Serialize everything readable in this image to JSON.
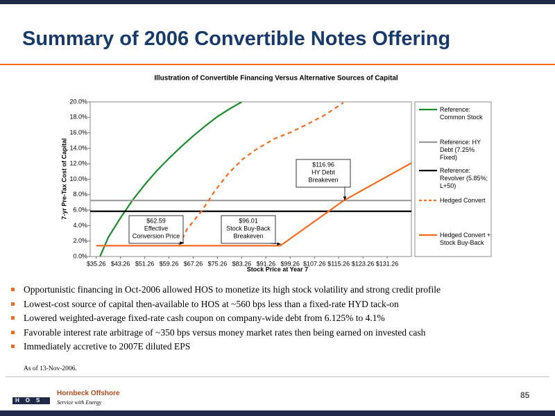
{
  "header": {
    "title": "Summary of 2006 Convertible Notes Offering"
  },
  "chart_data": {
    "type": "line",
    "title": "Illustration of Convertible Financing Versus Alternative Sources of Capital",
    "x_label": "Stock Price at Year 7",
    "y_label": "7-yr  Pre-Tax Cost of Capital",
    "xlim": [
      33.26,
      139.26
    ],
    "xticks": [
      {
        "value": 35.26,
        "label": "$35.26"
      },
      {
        "value": 43.26,
        "label": "$43.26"
      },
      {
        "value": 51.26,
        "label": "$51.26"
      },
      {
        "value": 59.26,
        "label": "$59.26"
      },
      {
        "value": 67.26,
        "label": "$67.26"
      },
      {
        "value": 75.26,
        "label": "$75.26"
      },
      {
        "value": 83.26,
        "label": "$83.26"
      },
      {
        "value": 91.26,
        "label": "$91.26"
      },
      {
        "value": 99.26,
        "label": "$99.26"
      },
      {
        "value": 107.26,
        "label": "$107.26"
      },
      {
        "value": 115.26,
        "label": "$115.26"
      },
      {
        "value": 123.26,
        "label": "$123.26"
      },
      {
        "value": 131.26,
        "label": "$131.26"
      }
    ],
    "ylim": [
      0,
      20
    ],
    "yticks": [
      {
        "value": 0,
        "label": "0.0%"
      },
      {
        "value": 2,
        "label": "2.0%"
      },
      {
        "value": 4,
        "label": "4.0%"
      },
      {
        "value": 6,
        "label": "6.0%"
      },
      {
        "value": 8,
        "label": "8.0%"
      },
      {
        "value": 10,
        "label": "10.0%"
      },
      {
        "value": 12,
        "label": "12.0%"
      },
      {
        "value": 14,
        "label": "14.0%"
      },
      {
        "value": 16,
        "label": "16.0%"
      },
      {
        "value": 18,
        "label": "18.0%"
      },
      {
        "value": 20,
        "label": "20.0%"
      }
    ],
    "series": [
      {
        "name": "Reference: Common Stock",
        "color": "#1a8a2a",
        "dash": false,
        "x": [
          36.5,
          39.26,
          43.26,
          47.26,
          51.26,
          55.26,
          59.26,
          63.26,
          67.26,
          71.26,
          75.26,
          79.26,
          83.26
        ],
        "values": [
          0,
          2.5,
          5.0,
          7.3,
          9.3,
          11.1,
          12.7,
          14.2,
          15.6,
          16.9,
          18.1,
          19.1,
          20.0
        ]
      },
      {
        "name": "Reference: HY Debt (7.25% Fixed)",
        "color": "#999999",
        "dash": false,
        "x": [
          33.26,
          139.26
        ],
        "values": [
          7.25,
          7.25
        ]
      },
      {
        "name": "Reference: Revolver (5.85%; L+50)",
        "color": "#000000",
        "dash": false,
        "x": [
          33.26,
          139.26
        ],
        "values": [
          5.85,
          5.85
        ]
      },
      {
        "name": "Hedged Convert",
        "color": "#f26a1b",
        "dash": true,
        "x": [
          62.59,
          65.3,
          69.9,
          74.4,
          79.0,
          83.6,
          88.2,
          93.9,
          99.6,
          105.3,
          111.1,
          116.8
        ],
        "values": [
          1.4,
          3.6,
          5.8,
          8.5,
          10.8,
          12.6,
          13.9,
          15.2,
          16.1,
          17.2,
          18.4,
          19.9
        ]
      },
      {
        "name": "Hedged Convert + Stock Buy-Back",
        "color": "#f26a1b",
        "dash": false,
        "x": [
          35.26,
          96.01,
          116.96,
          139.26
        ],
        "values": [
          1.4,
          1.4,
          7.25,
          12.1
        ]
      }
    ],
    "annotations": [
      {
        "lines": [
          "$62.59",
          "Effective",
          "Conversion Price"
        ]
      },
      {
        "lines": [
          "$96.01",
          "Stock Buy-Back",
          "Breakeven"
        ]
      },
      {
        "lines": [
          "$116.96",
          "HY Debt",
          "Breakeven"
        ]
      }
    ]
  },
  "bullets": [
    "Opportunistic financing in Oct-2006 allowed HOS to monetize its high stock volatility and strong credit profile",
    "Lowest-cost source of capital then-available to HOS at ~560 bps less than a fixed-rate HYD tack-on",
    "Lowered weighted-average fixed-rate cash coupon on company-wide debt from 6.125% to 4.1%",
    "Favorable interest rate arbitrage of  ~350 bps versus money market rates then being earned on invested cash",
    "Immediately accretive to 2007E diluted EPS"
  ],
  "footnote": "As of 13-Nov-2006.",
  "footer": {
    "logo_letters": "HOS",
    "company": "Hornbeck Offshore",
    "tagline": "Service with Energy",
    "page": "85"
  }
}
